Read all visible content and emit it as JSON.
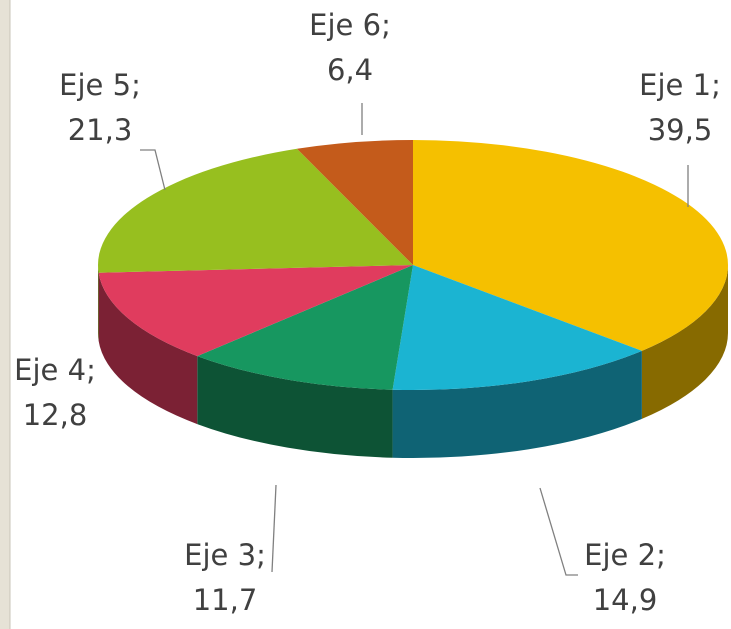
{
  "chart_data": {
    "type": "pie3d",
    "categories": [
      "Eje 1",
      "Eje 2",
      "Eje 3",
      "Eje 4",
      "Eje 5",
      "Eje 6"
    ],
    "separator": ";",
    "values": [
      39.5,
      14.9,
      11.7,
      12.8,
      21.3,
      6.4
    ],
    "value_labels": [
      "39,5",
      "14,9",
      "11,7",
      "12,8",
      "21,3",
      "6,4"
    ],
    "colors": [
      "#f5c000",
      "#1bb4d2",
      "#179760",
      "#e03c5e",
      "#97bf1f",
      "#c45b1b"
    ]
  }
}
